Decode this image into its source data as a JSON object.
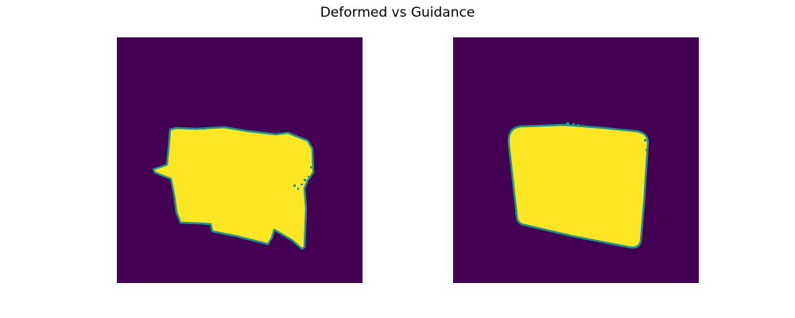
{
  "figure": {
    "title": "Deformed vs Guidance"
  },
  "colors": {
    "background": "#440154",
    "mask_fill": "#fde725",
    "mask_edge": "#21918c",
    "mask_edge_light": "#5ec962"
  },
  "panels": [
    {
      "id": "deformed",
      "name": "deformed-mask-image"
    },
    {
      "id": "guidance",
      "name": "guidance-mask-image"
    }
  ]
}
